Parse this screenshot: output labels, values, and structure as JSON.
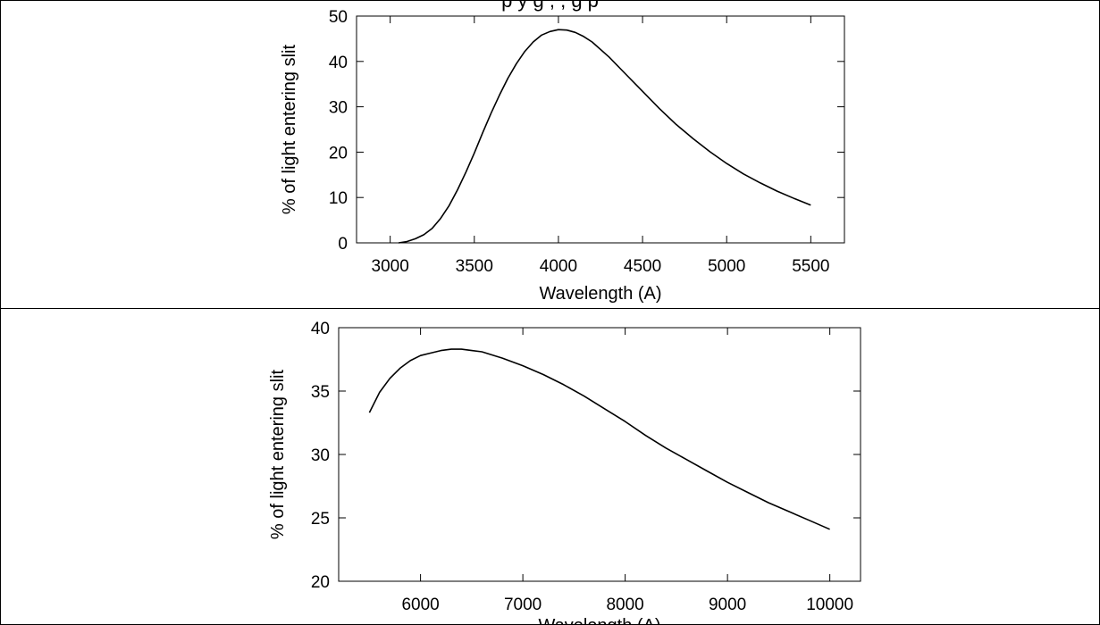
{
  "header": {
    "cut_text": "                                    p                                                y g     ,  ,                                      g p"
  },
  "chart_data": [
    {
      "type": "line",
      "title": "",
      "xlabel": "Wavelength (A)",
      "ylabel": "% of light entering slit",
      "xlim": [
        2800,
        5700
      ],
      "ylim": [
        0,
        50
      ],
      "xticks": [
        3000,
        3500,
        4000,
        4500,
        5000,
        5500
      ],
      "yticks": [
        0,
        10,
        20,
        30,
        40,
        50
      ],
      "grid": false,
      "series": [
        {
          "x": [
            3050,
            3100,
            3150,
            3200,
            3250,
            3300,
            3350,
            3400,
            3450,
            3500,
            3550,
            3600,
            3650,
            3700,
            3750,
            3800,
            3850,
            3900,
            3950,
            4000,
            4050,
            4100,
            4150,
            4200,
            4300,
            4400,
            4500,
            4600,
            4700,
            4800,
            4900,
            5000,
            5100,
            5200,
            5300,
            5400,
            5500
          ],
          "y": [
            0,
            0.3,
            0.9,
            1.8,
            3.2,
            5.4,
            8.2,
            11.7,
            15.6,
            19.8,
            24.3,
            28.6,
            32.6,
            36.3,
            39.5,
            42.2,
            44.3,
            45.8,
            46.6,
            47.0,
            46.9,
            46.4,
            45.5,
            44.3,
            41.0,
            37.2,
            33.4,
            29.6,
            26.1,
            23.0,
            20.1,
            17.5,
            15.2,
            13.2,
            11.4,
            9.8,
            8.3
          ]
        }
      ]
    },
    {
      "type": "line",
      "title": "",
      "xlabel": "Wavelength (A)",
      "ylabel": "% of light entering slit",
      "xlim": [
        5200,
        10300
      ],
      "ylim": [
        20,
        40
      ],
      "xticks": [
        6000,
        7000,
        8000,
        9000,
        10000
      ],
      "yticks": [
        20,
        25,
        30,
        35,
        40
      ],
      "grid": false,
      "series": [
        {
          "x": [
            5500,
            5600,
            5700,
            5800,
            5900,
            6000,
            6100,
            6200,
            6300,
            6400,
            6500,
            6600,
            6800,
            7000,
            7200,
            7400,
            7600,
            7800,
            8000,
            8200,
            8400,
            8600,
            8800,
            9000,
            9200,
            9400,
            9600,
            9800,
            10000
          ],
          "y": [
            33.3,
            34.9,
            36.0,
            36.8,
            37.4,
            37.8,
            38.0,
            38.2,
            38.3,
            38.3,
            38.2,
            38.1,
            37.6,
            37.0,
            36.3,
            35.5,
            34.6,
            33.6,
            32.6,
            31.5,
            30.5,
            29.6,
            28.7,
            27.8,
            27.0,
            26.2,
            25.5,
            24.8,
            24.1
          ]
        }
      ]
    }
  ]
}
